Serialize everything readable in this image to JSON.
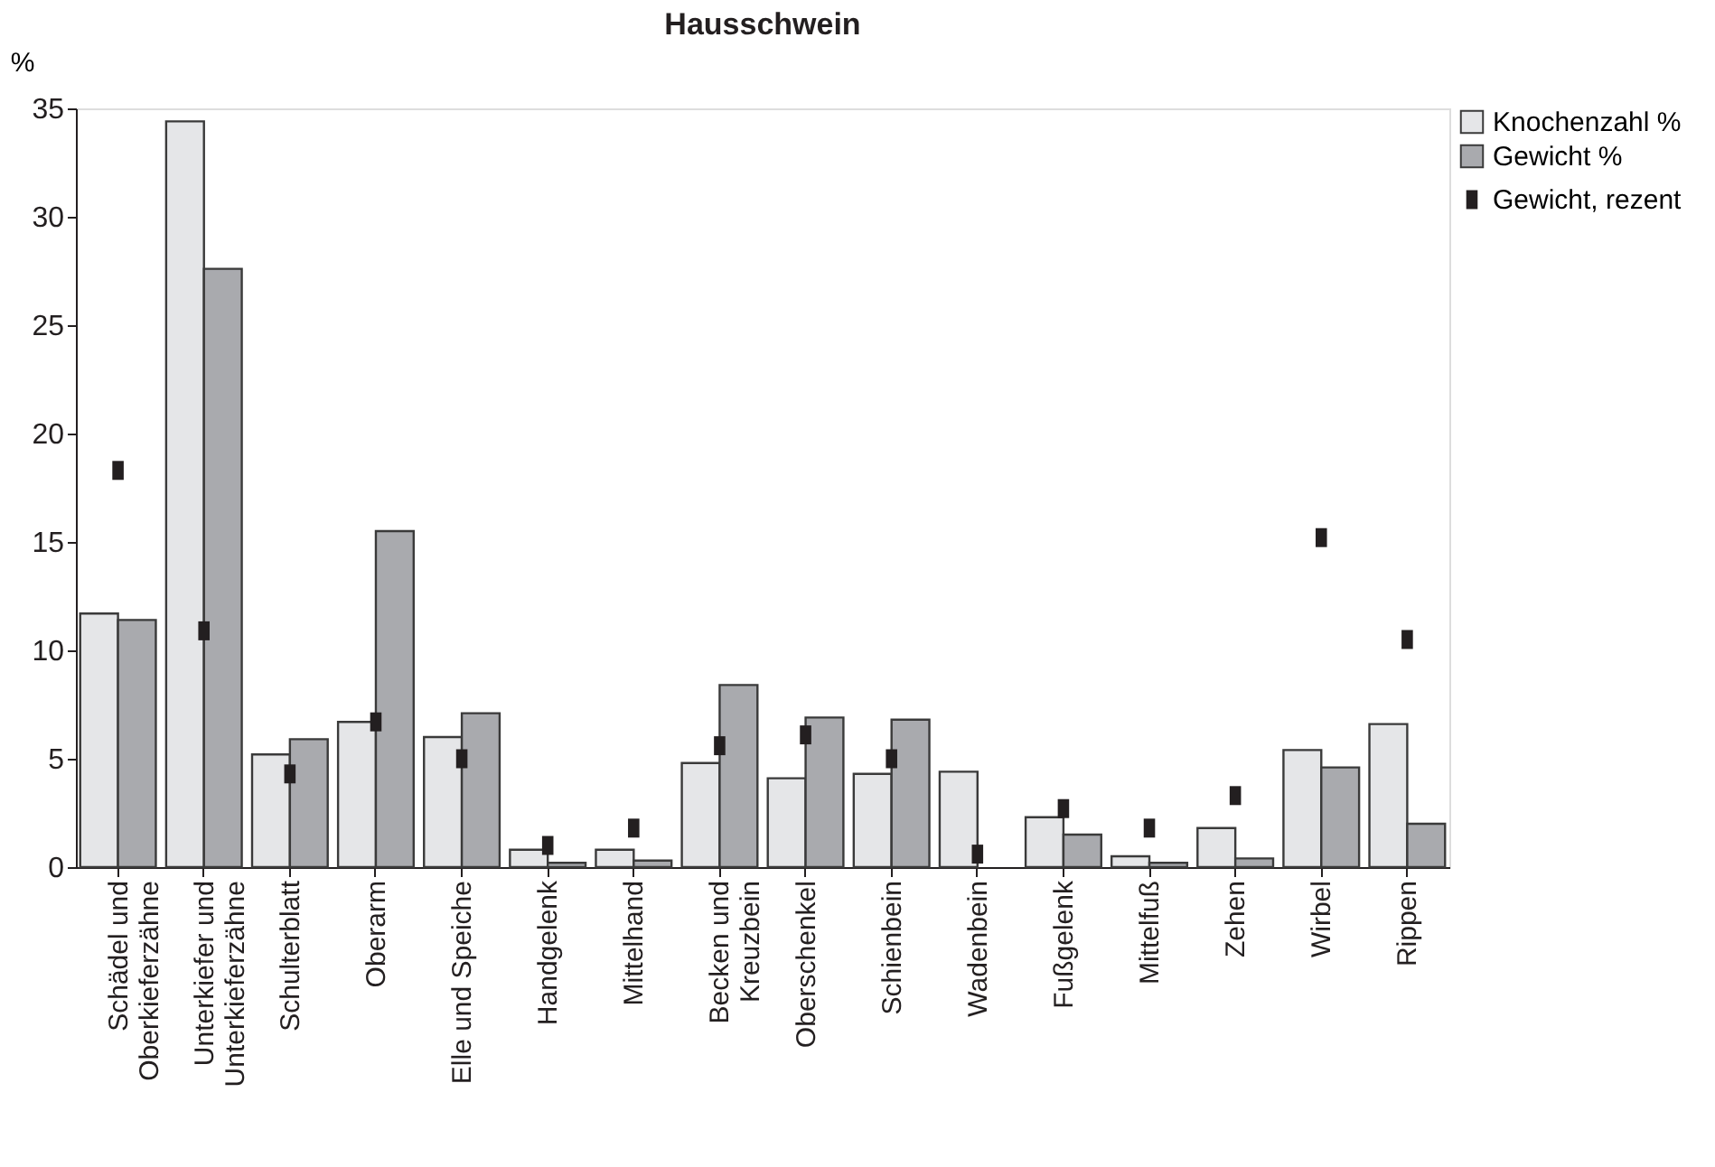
{
  "chart_data": {
    "type": "bar",
    "title": "Hausschwein",
    "ylabel": "%",
    "categories": [
      "Schädel und\nOberkieferzähne",
      "Unterkiefer und\nUnterkieferzähne",
      "Schulterblatt",
      "Oberarm",
      "Elle und Speiche",
      "Handgelenk",
      "Mittelhand",
      "Becken und\nKreuzbein",
      "Oberschenkel",
      "Schienbein",
      "Wadenbein",
      "Fußgelenk",
      "Mittelfuß",
      "Zehen",
      "Wirbel",
      "Rippen"
    ],
    "series": [
      {
        "name": "Knochenzahl %",
        "color": "#e5e6e8",
        "values": [
          11.7,
          34.4,
          5.2,
          6.7,
          6.0,
          0.8,
          0.8,
          4.8,
          4.1,
          4.3,
          4.4,
          2.3,
          0.5,
          1.8,
          5.4,
          6.6
        ]
      },
      {
        "name": "Gewicht %",
        "color": "#a9aaae",
        "values": [
          11.4,
          27.6,
          5.9,
          15.5,
          7.1,
          0.2,
          0.3,
          8.4,
          6.9,
          6.8,
          null,
          1.5,
          0.2,
          0.4,
          4.6,
          2.0
        ]
      },
      {
        "name": "Gewicht, rezent",
        "type": "scatter",
        "marker": "square",
        "color": "#231f20",
        "values": [
          18.3,
          10.9,
          4.3,
          6.7,
          5.0,
          1.0,
          1.8,
          5.6,
          6.1,
          5.0,
          0.6,
          2.7,
          1.8,
          3.3,
          15.2,
          10.5
        ]
      }
    ],
    "ylim": [
      0,
      35
    ],
    "yticks": [
      0,
      5,
      10,
      15,
      20,
      25,
      30,
      35
    ],
    "grid": false,
    "legend": "top right"
  }
}
